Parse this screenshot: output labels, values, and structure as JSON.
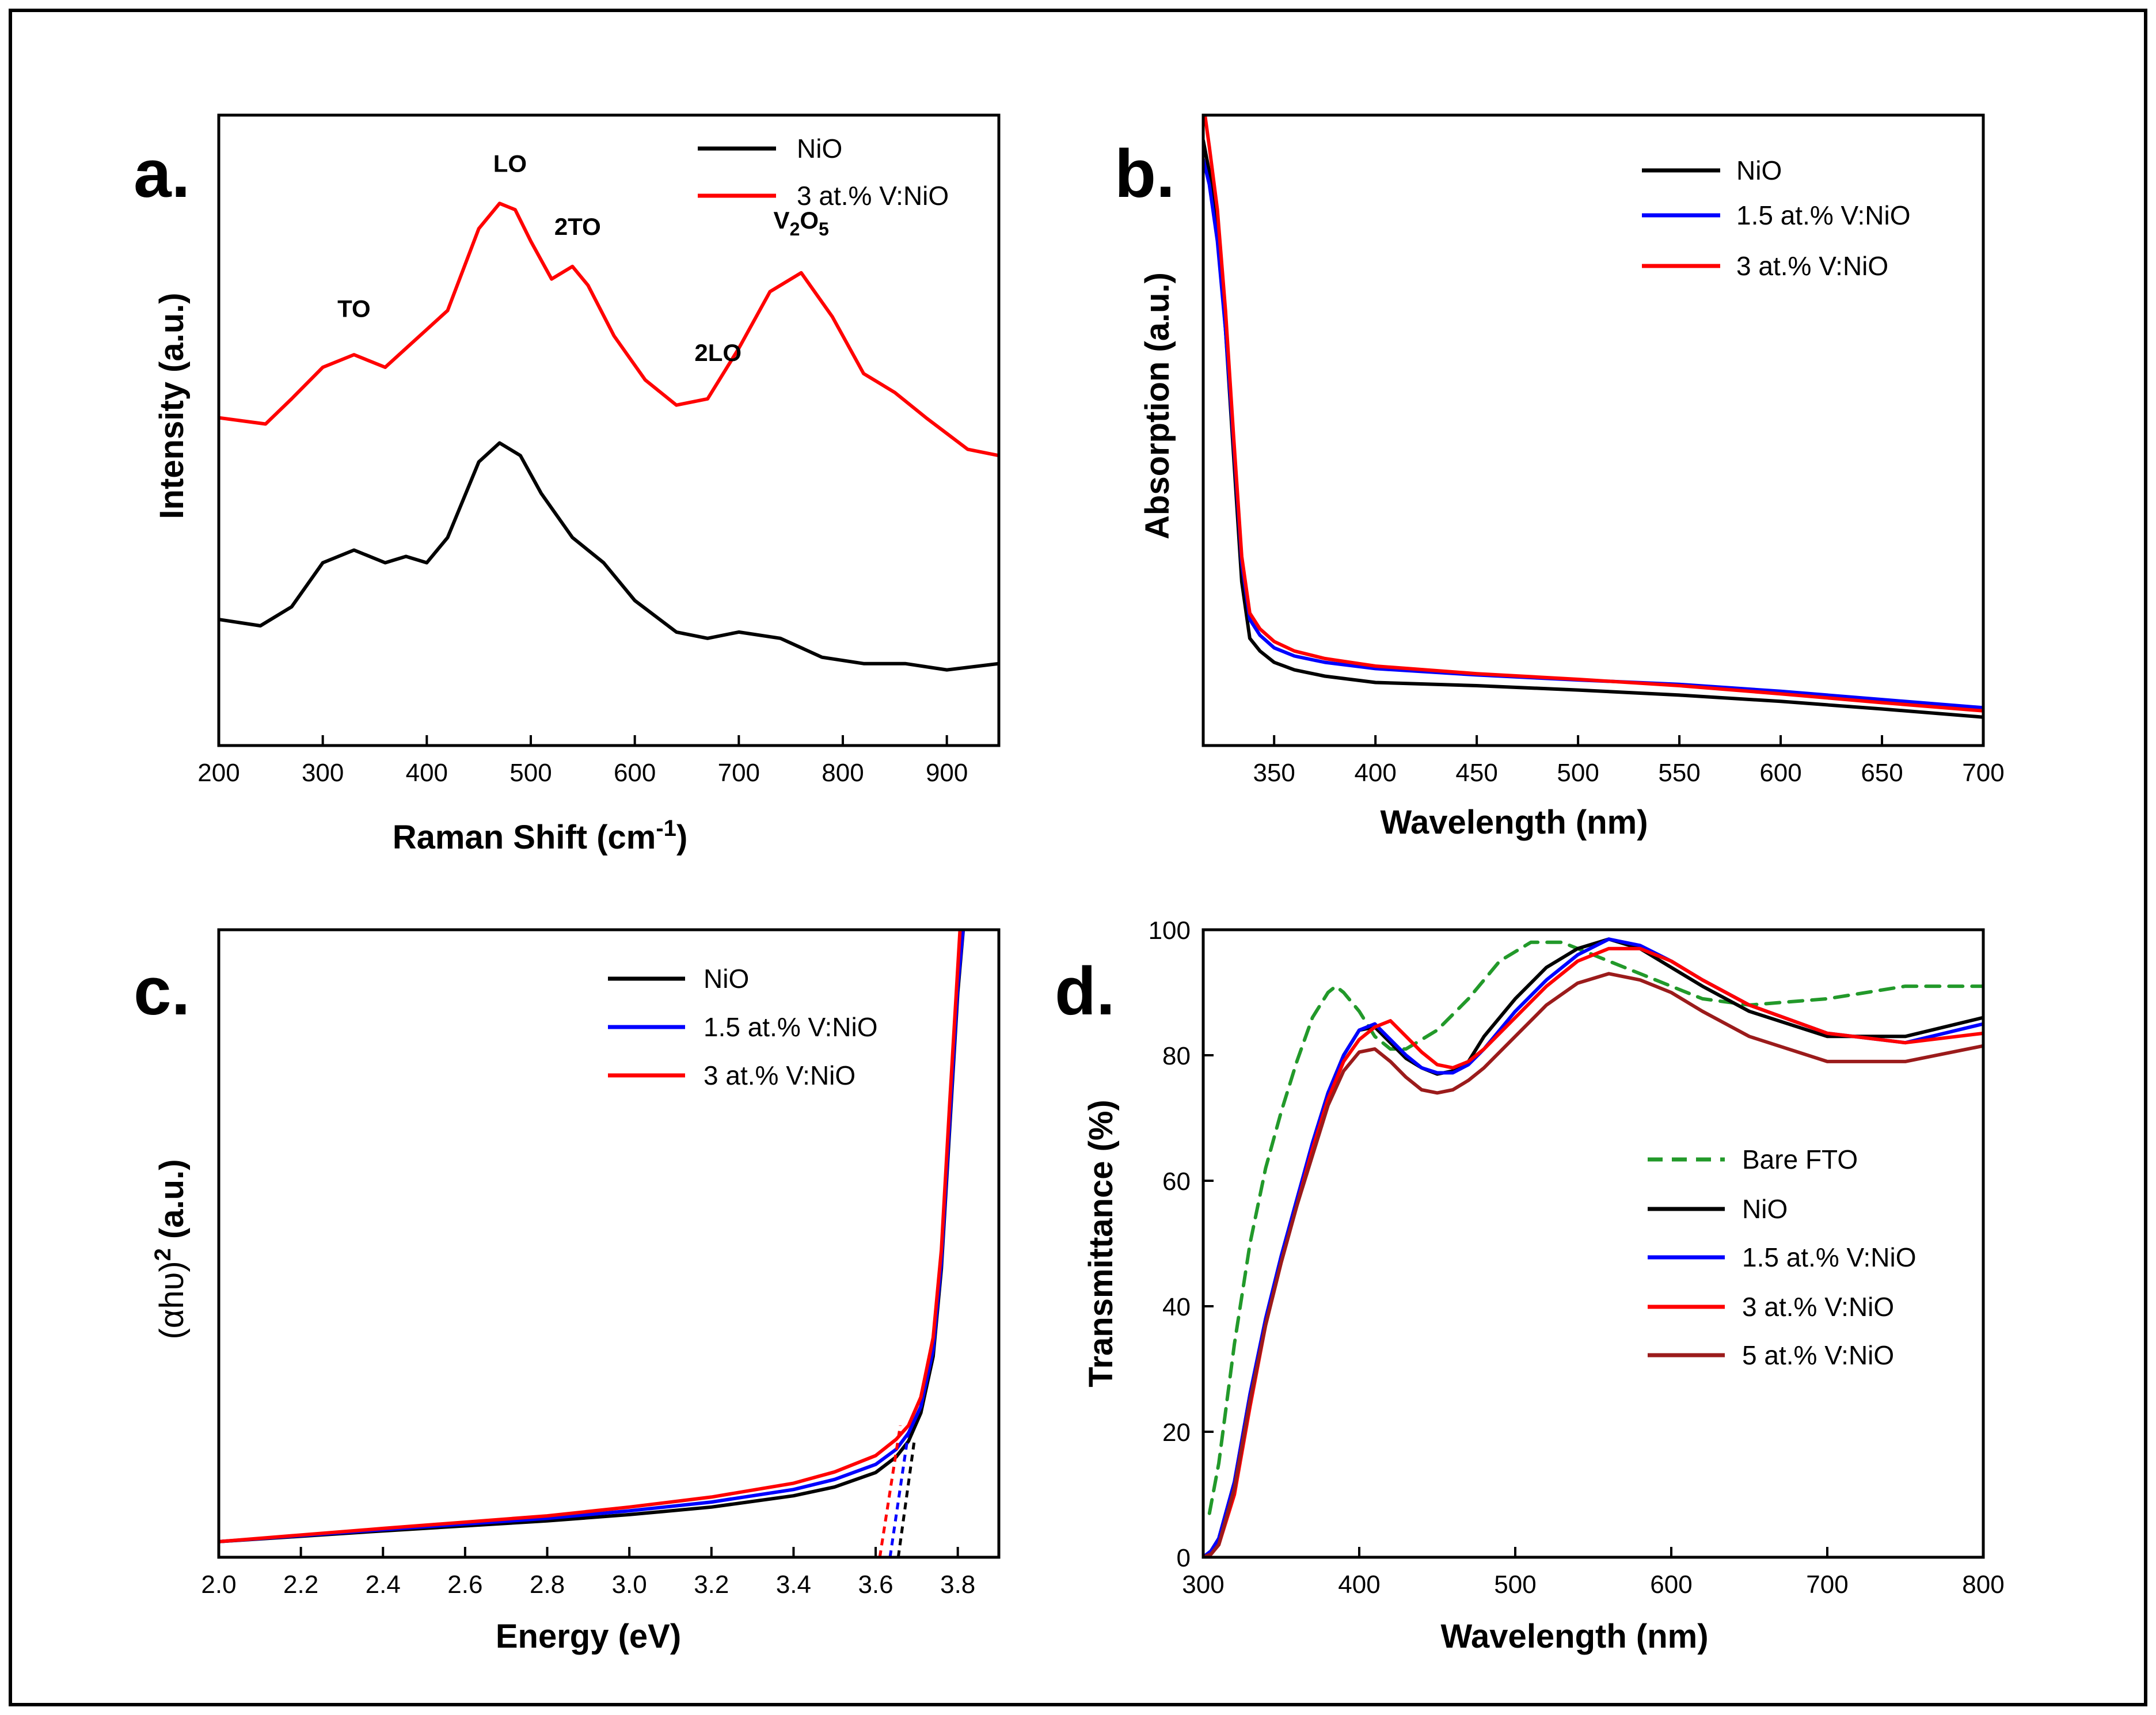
{
  "chart_data": [
    {
      "panel": "a.",
      "type": "line",
      "xlabel": "Raman Shift (cm-1)",
      "xlabel_main": "Raman Shift (cm",
      "xlabel_sup": "-1",
      "xlabel_close": ")",
      "ylabel": "Intensity (a.u.)",
      "xlim": [
        200,
        950
      ],
      "ylim": [
        0,
        10
      ],
      "xticks": [
        200,
        300,
        400,
        500,
        600,
        700,
        800,
        900
      ],
      "yticks": [],
      "legend": [
        "NiO",
        "3 at.% V:NiO"
      ],
      "series": [
        {
          "name": "NiO",
          "color": "#000000",
          "x": [
            200,
            240,
            270,
            300,
            330,
            360,
            380,
            400,
            420,
            450,
            470,
            490,
            510,
            540,
            570,
            600,
            640,
            670,
            700,
            740,
            780,
            820,
            860,
            900,
            950
          ],
          "y": [
            2.0,
            1.9,
            2.2,
            2.9,
            3.1,
            2.9,
            3.0,
            2.9,
            3.3,
            4.5,
            4.8,
            4.6,
            4.0,
            3.3,
            2.9,
            2.3,
            1.8,
            1.7,
            1.8,
            1.7,
            1.4,
            1.3,
            1.3,
            1.2,
            1.3
          ]
        },
        {
          "name": "3 at.% V:NiO",
          "color": "#ff0000",
          "x": [
            200,
            245,
            270,
            300,
            330,
            360,
            380,
            400,
            420,
            450,
            470,
            485,
            500,
            520,
            540,
            555,
            580,
            610,
            640,
            670,
            700,
            730,
            760,
            790,
            820,
            850,
            880,
            920,
            950
          ],
          "y": [
            5.2,
            5.1,
            5.5,
            6.0,
            6.2,
            6.0,
            6.3,
            6.6,
            6.9,
            8.2,
            8.6,
            8.5,
            8.0,
            7.4,
            7.6,
            7.3,
            6.5,
            5.8,
            5.4,
            5.5,
            6.3,
            7.2,
            7.5,
            6.8,
            5.9,
            5.6,
            5.2,
            4.7,
            4.6
          ]
        }
      ],
      "annotations": [
        {
          "text": "TO",
          "x": 330,
          "y": 6.8
        },
        {
          "text": "LO",
          "x": 480,
          "y": 9.1
        },
        {
          "text": "2TO",
          "x": 545,
          "y": 8.1
        },
        {
          "text": "2LO",
          "x": 680,
          "y": 6.1
        },
        {
          "text_main": "V",
          "sub1": "2",
          "mid": "O",
          "sub2": "5",
          "x": 760,
          "y": 8.2
        }
      ]
    },
    {
      "panel": "b.",
      "type": "line",
      "xlabel": "Wavelength (nm)",
      "ylabel": "Absorption (a.u.)",
      "xlim": [
        315,
        700
      ],
      "ylim": [
        0,
        10
      ],
      "xticks": [
        350,
        400,
        450,
        500,
        550,
        600,
        650,
        700
      ],
      "yticks": [],
      "legend": [
        "NiO",
        "1.5 at.% V:NiO",
        "3 at.% V:NiO"
      ],
      "series": [
        {
          "name": "NiO",
          "color": "#000000",
          "x": [
            315,
            318,
            322,
            326,
            330,
            334,
            338,
            343,
            350,
            360,
            375,
            400,
            450,
            500,
            550,
            600,
            650,
            700
          ],
          "y": [
            9.6,
            9.1,
            8.2,
            6.6,
            4.6,
            2.6,
            1.7,
            1.5,
            1.32,
            1.2,
            1.1,
            1.0,
            0.95,
            0.88,
            0.8,
            0.7,
            0.58,
            0.45
          ]
        },
        {
          "name": "1.5 at.% V:NiO",
          "color": "#0000ff",
          "x": [
            315,
            318,
            322,
            326,
            330,
            334,
            338,
            343,
            350,
            360,
            375,
            400,
            450,
            500,
            550,
            600,
            650,
            700
          ],
          "y": [
            9.3,
            8.9,
            8.0,
            6.6,
            4.8,
            2.9,
            2.0,
            1.75,
            1.55,
            1.42,
            1.32,
            1.22,
            1.12,
            1.04,
            0.97,
            0.86,
            0.73,
            0.6
          ]
        },
        {
          "name": "3 at.% V:NiO",
          "color": "#ff0000",
          "x": [
            315,
            318,
            322,
            326,
            330,
            334,
            338,
            343,
            350,
            360,
            375,
            400,
            450,
            500,
            550,
            600,
            650,
            700
          ],
          "y": [
            10.2,
            9.5,
            8.5,
            6.9,
            4.9,
            3.0,
            2.1,
            1.85,
            1.65,
            1.5,
            1.38,
            1.26,
            1.14,
            1.05,
            0.95,
            0.82,
            0.68,
            0.55
          ]
        }
      ]
    },
    {
      "panel": "c.",
      "type": "line",
      "xlabel": "Energy (eV)",
      "ylabel": "(αhυ)2 (a.u.)",
      "ylabel_main": "(αhυ)",
      "ylabel_sup": "2",
      "ylabel_tail": " (a.u.)",
      "xlim": [
        2.0,
        3.9
      ],
      "ylim": [
        0,
        10
      ],
      "xticks": [
        2.0,
        2.2,
        2.4,
        2.6,
        2.8,
        3.0,
        3.2,
        3.4,
        3.6,
        3.8
      ],
      "xtick_labels": [
        "2.0",
        "2.2",
        "2.4",
        "2.6",
        "2.8",
        "3.0",
        "3.2",
        "3.4",
        "3.6",
        "3.8"
      ],
      "yticks": [],
      "legend": [
        "NiO",
        "1.5 at.% V:NiO",
        "3 at.% V:NiO"
      ],
      "series": [
        {
          "name": "NiO",
          "color": "#000000",
          "x": [
            2.0,
            2.4,
            2.8,
            3.0,
            3.2,
            3.4,
            3.5,
            3.6,
            3.65,
            3.68,
            3.71,
            3.74,
            3.76,
            3.78,
            3.8,
            3.82
          ],
          "y": [
            0.25,
            0.42,
            0.58,
            0.68,
            0.8,
            0.98,
            1.12,
            1.35,
            1.6,
            1.85,
            2.3,
            3.2,
            4.6,
            6.8,
            9.0,
            10.5
          ]
        },
        {
          "name": "1.5 at.% V:NiO",
          "color": "#0000ff",
          "x": [
            2.0,
            2.4,
            2.8,
            3.0,
            3.2,
            3.4,
            3.5,
            3.6,
            3.65,
            3.68,
            3.71,
            3.74,
            3.76,
            3.78,
            3.8,
            3.82
          ],
          "y": [
            0.25,
            0.44,
            0.62,
            0.74,
            0.88,
            1.08,
            1.24,
            1.48,
            1.72,
            1.98,
            2.4,
            3.3,
            4.7,
            6.9,
            9.1,
            10.5
          ]
        },
        {
          "name": "3 at.% V:NiO",
          "color": "#ff0000",
          "x": [
            2.0,
            2.4,
            2.8,
            3.0,
            3.2,
            3.4,
            3.5,
            3.6,
            3.65,
            3.68,
            3.71,
            3.74,
            3.76,
            3.78,
            3.8,
            3.81
          ],
          "y": [
            0.25,
            0.46,
            0.66,
            0.8,
            0.96,
            1.18,
            1.36,
            1.62,
            1.88,
            2.1,
            2.55,
            3.5,
            4.9,
            7.2,
            9.4,
            10.5
          ]
        }
      ],
      "tangents": [
        {
          "series": "NiO",
          "color": "#000000",
          "x": [
            3.655,
            3.695
          ],
          "y": [
            0.0,
            1.9
          ]
        },
        {
          "series": "1.5 at.% V:NiO",
          "color": "#0000ff",
          "x": [
            3.635,
            3.68
          ],
          "y": [
            0.0,
            2.0
          ]
        },
        {
          "series": "3 at.% V:NiO",
          "color": "#ff0000",
          "x": [
            3.61,
            3.66
          ],
          "y": [
            0.0,
            2.1
          ]
        }
      ]
    },
    {
      "panel": "d.",
      "type": "line",
      "xlabel": "Wavelength (nm)",
      "ylabel": "Transmittance (%)",
      "xlim": [
        300,
        800
      ],
      "ylim": [
        0,
        100
      ],
      "xticks": [
        300,
        400,
        500,
        600,
        700,
        800
      ],
      "yticks": [
        0,
        20,
        40,
        60,
        80,
        100
      ],
      "legend": [
        "Bare FTO",
        "NiO",
        "1.5 at.% V:NiO",
        "3 at.% V:NiO",
        "5 at.% V:NiO"
      ],
      "series": [
        {
          "name": "Bare FTO",
          "color": "#22992a",
          "dashed": true,
          "x": [
            304,
            310,
            320,
            330,
            340,
            350,
            360,
            370,
            380,
            385,
            390,
            400,
            410,
            420,
            430,
            450,
            470,
            490,
            510,
            530,
            550,
            570,
            600,
            620,
            650,
            700,
            750,
            800
          ],
          "y": [
            7,
            15,
            34,
            50,
            62,
            71,
            79,
            86,
            90,
            91,
            90,
            87,
            83,
            81,
            81,
            84,
            89,
            95,
            98,
            98,
            96,
            94,
            91,
            89,
            88,
            89,
            91,
            91
          ]
        },
        {
          "name": "NiO",
          "color": "#000000",
          "x": [
            300,
            305,
            310,
            320,
            330,
            340,
            350,
            360,
            370,
            380,
            390,
            400,
            410,
            420,
            430,
            440,
            450,
            460,
            470,
            480,
            500,
            520,
            540,
            560,
            580,
            600,
            620,
            650,
            700,
            750,
            800
          ],
          "y": [
            0,
            1,
            3,
            12,
            26,
            38,
            48,
            57,
            66,
            74,
            80,
            84,
            84.5,
            82,
            79.5,
            78,
            77,
            77.5,
            79,
            83,
            89,
            94,
            97,
            98.5,
            97,
            94,
            91,
            87,
            83,
            83,
            86
          ]
        },
        {
          "name": "1.5 at.% V:NiO",
          "color": "#0000ff",
          "x": [
            300,
            305,
            310,
            320,
            330,
            340,
            350,
            360,
            370,
            380,
            390,
            400,
            410,
            420,
            430,
            440,
            450,
            460,
            470,
            480,
            500,
            520,
            540,
            560,
            580,
            600,
            620,
            650,
            700,
            750,
            800
          ],
          "y": [
            0,
            1,
            3,
            12,
            26,
            38,
            48,
            57,
            66,
            74,
            80,
            84,
            85,
            82.5,
            80,
            78,
            77.2,
            77.2,
            78.5,
            81,
            87,
            92,
            96,
            98.5,
            97.5,
            95,
            92,
            88,
            83.5,
            82,
            85
          ]
        },
        {
          "name": "3 at.% V:NiO",
          "color": "#ff0000",
          "x": [
            300,
            305,
            310,
            320,
            330,
            340,
            350,
            360,
            370,
            380,
            390,
            400,
            410,
            420,
            430,
            440,
            450,
            460,
            470,
            480,
            500,
            520,
            540,
            560,
            580,
            600,
            620,
            650,
            700,
            750,
            800
          ],
          "y": [
            0,
            0.5,
            2,
            10,
            24,
            37,
            47,
            56,
            65,
            73,
            79,
            82.5,
            84.5,
            85.5,
            83,
            80.5,
            78.5,
            78,
            79,
            81,
            86,
            91,
            95,
            97,
            97,
            95,
            92,
            88,
            83.5,
            82,
            83.5
          ]
        },
        {
          "name": "5 at.% V:NiO",
          "color": "#9b1b1b",
          "x": [
            300,
            305,
            310,
            320,
            330,
            340,
            350,
            360,
            370,
            380,
            390,
            400,
            410,
            420,
            430,
            440,
            450,
            460,
            470,
            480,
            500,
            520,
            540,
            560,
            580,
            600,
            620,
            650,
            700,
            750,
            800
          ],
          "y": [
            0,
            0.5,
            2,
            11,
            25,
            37,
            47,
            56,
            64,
            72,
            77.5,
            80.5,
            81,
            79,
            76.5,
            74.5,
            74,
            74.5,
            76,
            78,
            83,
            88,
            91.5,
            93,
            92,
            90,
            87,
            83,
            79,
            79,
            81.5
          ]
        }
      ]
    }
  ]
}
